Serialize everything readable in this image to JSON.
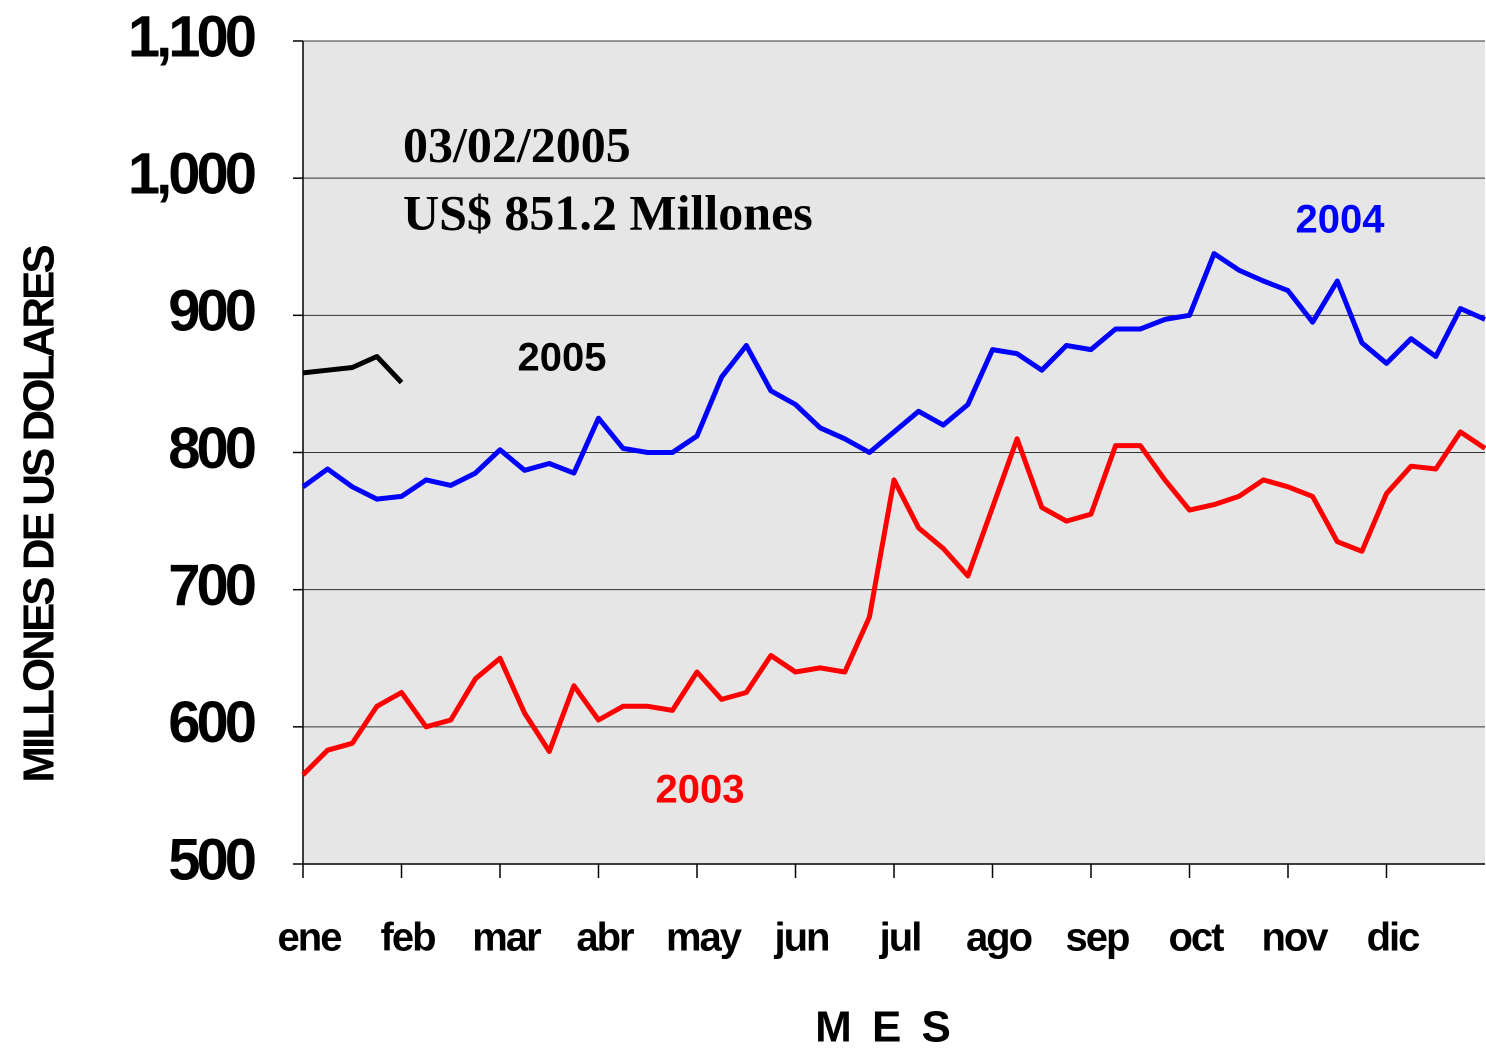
{
  "chart_data": {
    "type": "line",
    "annotations": [
      "03/02/2005",
      "US$ 851.2 Millones"
    ],
    "x_label": "M E S",
    "y_label": "MILLONES DE US DOLARES",
    "categories": [
      "ene",
      null,
      null,
      null,
      "feb",
      null,
      null,
      null,
      "mar",
      null,
      null,
      null,
      "abr",
      null,
      null,
      null,
      "may",
      null,
      null,
      null,
      "jun",
      null,
      null,
      null,
      "jul",
      null,
      null,
      null,
      "ago",
      null,
      null,
      null,
      "sep",
      null,
      null,
      null,
      "oct",
      null,
      null,
      null,
      "nov",
      null,
      null,
      null,
      "dic",
      null,
      null,
      null,
      null
    ],
    "ylim": [
      500,
      1100
    ],
    "yticks": [
      500,
      600,
      700,
      800,
      900,
      {
        "value": 1000,
        "label": "1,000"
      },
      {
        "value": 1100,
        "label": "1,100"
      }
    ],
    "grid": true,
    "series": [
      {
        "name": "2003",
        "color": "#ff0000",
        "values": [
          565,
          583,
          588,
          615,
          625,
          600,
          605,
          635,
          650,
          610,
          582,
          630,
          605,
          615,
          615,
          612,
          640,
          620,
          625,
          652,
          640,
          643,
          640,
          680,
          780,
          745,
          730,
          710,
          760,
          810,
          760,
          750,
          755,
          805,
          805,
          780,
          758,
          762,
          768,
          780,
          775,
          768,
          735,
          728,
          770,
          790,
          788,
          815,
          803
        ]
      },
      {
        "name": "2004",
        "color": "#0000ff",
        "values": [
          775,
          788,
          775,
          766,
          768,
          780,
          776,
          785,
          802,
          787,
          792,
          785,
          825,
          803,
          800,
          800,
          812,
          855,
          878,
          845,
          835,
          818,
          810,
          800,
          815,
          830,
          820,
          835,
          875,
          872,
          860,
          878,
          875,
          890,
          890,
          897,
          900,
          945,
          933,
          925,
          918,
          895,
          925,
          880,
          865,
          883,
          870,
          905,
          897
        ]
      },
      {
        "name": "2005",
        "color": "#000000",
        "values": [
          858,
          860,
          862,
          870,
          851,
          null,
          null,
          null,
          null,
          null,
          null,
          null,
          null,
          null,
          null,
          null,
          null,
          null,
          null,
          null,
          null,
          null,
          null,
          null,
          null,
          null,
          null,
          null,
          null,
          null,
          null,
          null,
          null,
          null,
          null,
          null,
          null,
          null,
          null,
          null,
          null,
          null,
          null,
          null,
          null,
          null,
          null,
          null,
          null
        ]
      }
    ]
  }
}
